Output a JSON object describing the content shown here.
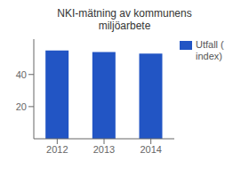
{
  "chart_data": {
    "type": "bar",
    "title": "NKI-mätning av kommunens\nmiljöarbete",
    "categories": [
      "2012",
      "2013",
      "2014"
    ],
    "series": [
      {
        "name": "Utfall (\nindex)",
        "color": "#2255C4",
        "values": [
          55,
          54,
          53
        ]
      }
    ],
    "ylim": [
      0,
      62
    ],
    "yticks": [
      20,
      40
    ],
    "grid": false,
    "legend": "right"
  }
}
